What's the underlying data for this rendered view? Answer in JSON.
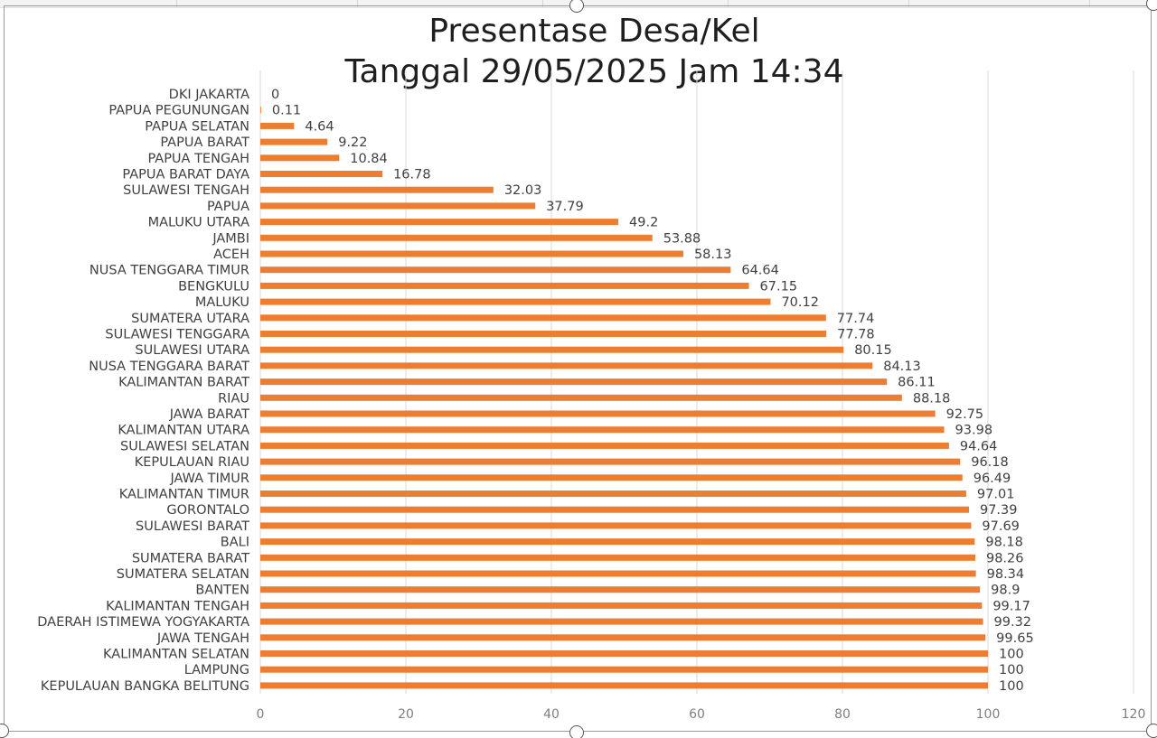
{
  "chart_data": {
    "type": "bar",
    "orientation": "horizontal",
    "title": "Presentase Desa/Kel",
    "subtitle": "Tanggal 29/05/2025 Jam 14:34",
    "xlim": [
      0,
      120
    ],
    "xticks": [
      0,
      20,
      40,
      60,
      80,
      100,
      120
    ],
    "grid": true,
    "bar_color": "#ED7D31",
    "categories": [
      "DKI JAKARTA",
      "PAPUA PEGUNUNGAN",
      "PAPUA SELATAN",
      "PAPUA BARAT",
      "PAPUA TENGAH",
      "PAPUA BARAT DAYA",
      "SULAWESI TENGAH",
      "PAPUA",
      "MALUKU UTARA",
      "JAMBI",
      "ACEH",
      "NUSA TENGGARA TIMUR",
      "BENGKULU",
      "MALUKU",
      "SUMATERA UTARA",
      "SULAWESI TENGGARA",
      "SULAWESI UTARA",
      "NUSA TENGGARA BARAT",
      "KALIMANTAN BARAT",
      "RIAU",
      "JAWA BARAT",
      "KALIMANTAN UTARA",
      "SULAWESI SELATAN",
      "KEPULAUAN RIAU",
      "JAWA TIMUR",
      "KALIMANTAN TIMUR",
      "GORONTALO",
      "SULAWESI BARAT",
      "BALI",
      "SUMATERA BARAT",
      "SUMATERA SELATAN",
      "BANTEN",
      "KALIMANTAN TENGAH",
      "DAERAH ISTIMEWA YOGYAKARTA",
      "JAWA TENGAH",
      "KALIMANTAN SELATAN",
      "LAMPUNG",
      "KEPULAUAN BANGKA BELITUNG"
    ],
    "values": [
      0,
      0.11,
      4.64,
      9.22,
      10.84,
      16.78,
      32.03,
      37.79,
      49.2,
      53.88,
      58.13,
      64.64,
      67.15,
      70.12,
      77.74,
      77.78,
      80.15,
      84.13,
      86.11,
      88.18,
      92.75,
      93.98,
      94.64,
      96.18,
      96.49,
      97.01,
      97.39,
      97.69,
      98.18,
      98.26,
      98.34,
      98.9,
      99.17,
      99.32,
      99.65,
      100,
      100,
      100
    ]
  }
}
